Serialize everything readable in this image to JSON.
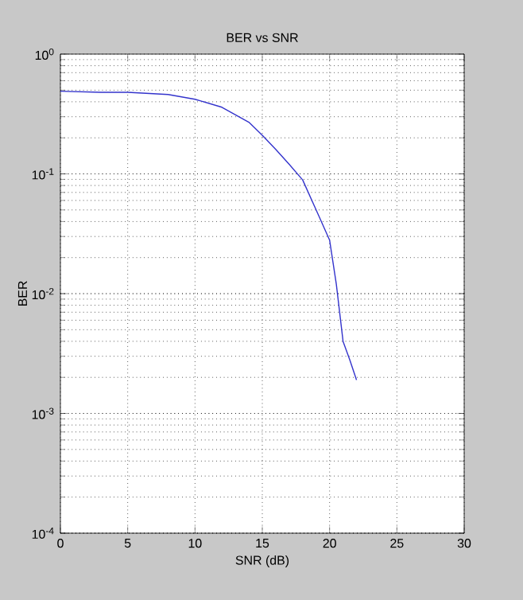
{
  "chart_data": {
    "type": "line",
    "title": "BER vs SNR",
    "xlabel": "SNR (dB)",
    "ylabel": "BER",
    "x": [
      0,
      3,
      5,
      8,
      10,
      12,
      14,
      15,
      16,
      17,
      18,
      19,
      20,
      20.5,
      21,
      21.5,
      22
    ],
    "series": [
      {
        "color": "#3333cc",
        "values": [
          0.49,
          0.48,
          0.48,
          0.46,
          0.42,
          0.36,
          0.27,
          0.21,
          0.16,
          0.12,
          0.089,
          0.05,
          0.028,
          0.012,
          0.004,
          0.0028,
          0.0019
        ]
      }
    ],
    "xlim": [
      0,
      30
    ],
    "xticks": [
      0,
      5,
      10,
      15,
      20,
      25,
      30
    ],
    "ylim": [
      0.0001,
      1
    ],
    "yticks": [
      {
        "value": 0.0001,
        "label": "10$^{-4}$"
      },
      {
        "value": 0.001,
        "label": "10$^{-3}$"
      },
      {
        "value": 0.01,
        "label": "10$^{-2}$"
      },
      {
        "value": 0.1,
        "label": "10$^{-1}$"
      },
      {
        "value": 1,
        "label": "10$^{0}$"
      }
    ],
    "log": "y",
    "grid": true,
    "line_style": "solid",
    "marker": "none"
  }
}
